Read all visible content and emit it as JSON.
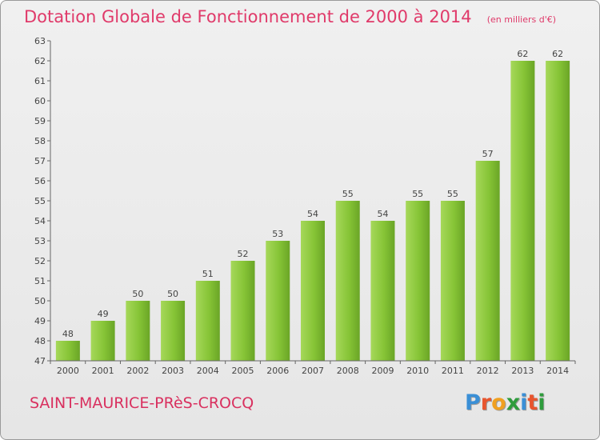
{
  "chart_data": {
    "type": "bar",
    "title": "Dotation Globale de Fonctionnement de 2000 à 2014",
    "subtitle": "(en milliers d'€)",
    "categories": [
      "2000",
      "2001",
      "2002",
      "2003",
      "2004",
      "2005",
      "2006",
      "2007",
      "2008",
      "2009",
      "2010",
      "2011",
      "2012",
      "2013",
      "2014"
    ],
    "values": [
      48,
      49,
      50,
      50,
      51,
      52,
      53,
      54,
      55,
      54,
      55,
      55,
      57,
      62,
      62
    ],
    "ylim": [
      47,
      63
    ],
    "yticks": [
      47,
      48,
      49,
      50,
      51,
      52,
      53,
      54,
      55,
      56,
      57,
      58,
      59,
      60,
      61,
      62,
      63
    ],
    "grid": false,
    "bar_color": "#7fbf2e"
  },
  "footer": {
    "commune": "SAINT-MAURICE-PRèS-CROCQ"
  },
  "logo": {
    "text": "Proxiti",
    "colors": [
      "#3a8fd6",
      "#e8552e",
      "#f0a020",
      "#2e9c3c",
      "#3a8fd6",
      "#e8552e",
      "#2e9c3c"
    ]
  }
}
